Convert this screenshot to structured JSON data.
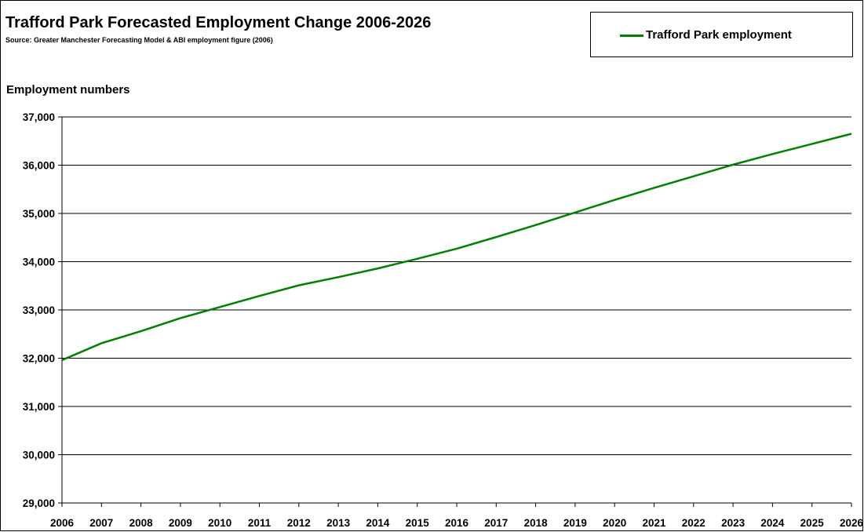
{
  "chart_data": {
    "type": "line",
    "title": "Trafford Park Forecasted Employment Change 2006-2026",
    "subtitle": "Source: Greater Manchester Forecasting Model & ABI employment figure (2006)",
    "xlabel": "",
    "ylabel": "Employment numbers",
    "x": [
      2006,
      2007,
      2008,
      2009,
      2010,
      2011,
      2012,
      2013,
      2014,
      2015,
      2016,
      2017,
      2018,
      2019,
      2020,
      2021,
      2022,
      2023,
      2024,
      2025,
      2026
    ],
    "x_tick_labels": [
      "2006",
      "2007",
      "2008",
      "2009",
      "2010",
      "2011",
      "2012",
      "2013",
      "2014",
      "2015",
      "2016",
      "2017",
      "2018",
      "2019",
      "2020",
      "2021",
      "2022",
      "2023",
      "2024",
      "2025",
      "2026"
    ],
    "series": [
      {
        "name": "Trafford Park employment",
        "color": "#008000",
        "values": [
          31960,
          32310,
          32560,
          32830,
          33060,
          33290,
          33510,
          33680,
          33860,
          34060,
          34270,
          34510,
          34760,
          35020,
          35280,
          35530,
          35770,
          36010,
          36230,
          36440,
          36650
        ]
      }
    ],
    "ylim": [
      29000,
      37000
    ],
    "y_ticks": [
      29000,
      30000,
      31000,
      32000,
      33000,
      34000,
      35000,
      36000,
      37000
    ],
    "y_tick_labels": [
      "29,000",
      "30,000",
      "31,000",
      "32,000",
      "33,000",
      "34,000",
      "35,000",
      "36,000",
      "37,000"
    ],
    "grid": true,
    "legend_position": "top-right",
    "colors": {
      "line": "#008000",
      "grid": "#000000",
      "axis": "#000000"
    }
  }
}
